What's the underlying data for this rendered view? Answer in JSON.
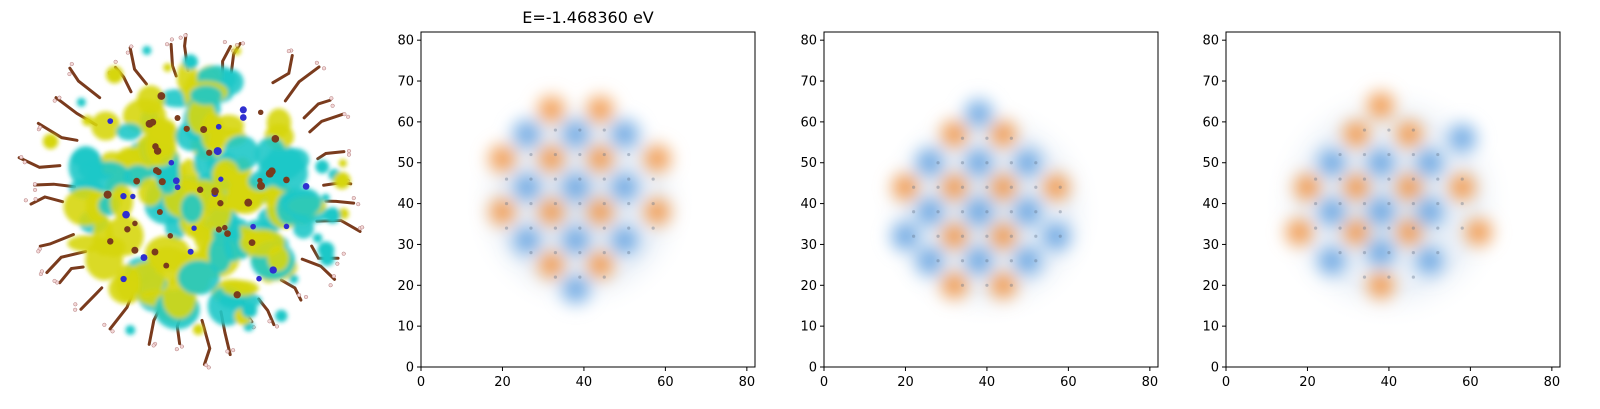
{
  "figure": {
    "title": "E=-1.468360 eV",
    "colors": {
      "positive": "#f28a21",
      "negative": "#3f8fe0",
      "isosurface_positive": "#d6d610",
      "isosurface_negative": "#1ec8c8",
      "atom_carbon": "#7a3b1d",
      "atom_nitrogen": "#2f2fd0",
      "atom_hydrogen": "#f3d7d7"
    }
  },
  "chart_data": [
    {
      "type": "heatmap",
      "title": "E=-1.468360 eV",
      "xlabel": "",
      "ylabel": "",
      "xlim": [
        0,
        82
      ],
      "ylim": [
        0,
        82
      ],
      "xticks": [
        0,
        20,
        40,
        60,
        80
      ],
      "yticks": [
        0,
        10,
        20,
        30,
        40,
        50,
        60,
        70,
        80
      ],
      "cluster_center": [
        39,
        40
      ],
      "cluster_radius": 25,
      "lobes": [
        {
          "x": 32,
          "y": 51,
          "sign": 1
        },
        {
          "x": 44,
          "y": 51,
          "sign": 1
        },
        {
          "x": 32,
          "y": 38,
          "sign": 1
        },
        {
          "x": 44,
          "y": 38,
          "sign": 1
        },
        {
          "x": 20,
          "y": 38,
          "sign": 1
        },
        {
          "x": 58,
          "y": 38,
          "sign": 1
        },
        {
          "x": 32,
          "y": 63,
          "sign": 1
        },
        {
          "x": 44,
          "y": 63,
          "sign": 1
        },
        {
          "x": 32,
          "y": 25,
          "sign": 1
        },
        {
          "x": 44,
          "y": 25,
          "sign": 1
        },
        {
          "x": 58,
          "y": 51,
          "sign": 1
        },
        {
          "x": 20,
          "y": 51,
          "sign": 1
        },
        {
          "x": 26,
          "y": 44,
          "sign": -1
        },
        {
          "x": 38,
          "y": 44,
          "sign": -1
        },
        {
          "x": 50,
          "y": 44,
          "sign": -1
        },
        {
          "x": 26,
          "y": 31,
          "sign": -1
        },
        {
          "x": 38,
          "y": 31,
          "sign": -1
        },
        {
          "x": 50,
          "y": 31,
          "sign": -1
        },
        {
          "x": 38,
          "y": 57,
          "sign": -1
        },
        {
          "x": 26,
          "y": 57,
          "sign": -1
        },
        {
          "x": 50,
          "y": 57,
          "sign": -1
        },
        {
          "x": 38,
          "y": 19,
          "sign": -1
        }
      ]
    },
    {
      "type": "heatmap",
      "xlim": [
        0,
        82
      ],
      "ylim": [
        0,
        82
      ],
      "xticks": [
        0,
        20,
        40,
        60,
        80
      ],
      "yticks": [
        0,
        10,
        20,
        30,
        40,
        50,
        60,
        70,
        80
      ],
      "cluster_center": [
        40,
        38
      ],
      "cluster_radius": 25,
      "lobes": [
        {
          "x": 32,
          "y": 44,
          "sign": 1
        },
        {
          "x": 44,
          "y": 44,
          "sign": 1
        },
        {
          "x": 32,
          "y": 32,
          "sign": 1
        },
        {
          "x": 44,
          "y": 32,
          "sign": 1
        },
        {
          "x": 20,
          "y": 44,
          "sign": 1
        },
        {
          "x": 57,
          "y": 44,
          "sign": 1
        },
        {
          "x": 32,
          "y": 57,
          "sign": 1
        },
        {
          "x": 44,
          "y": 57,
          "sign": 1
        },
        {
          "x": 32,
          "y": 20,
          "sign": 1
        },
        {
          "x": 44,
          "y": 20,
          "sign": 1
        },
        {
          "x": 26,
          "y": 50,
          "sign": -1
        },
        {
          "x": 38,
          "y": 50,
          "sign": -1
        },
        {
          "x": 50,
          "y": 50,
          "sign": -1
        },
        {
          "x": 26,
          "y": 38,
          "sign": -1
        },
        {
          "x": 38,
          "y": 38,
          "sign": -1
        },
        {
          "x": 50,
          "y": 38,
          "sign": -1
        },
        {
          "x": 26,
          "y": 26,
          "sign": -1
        },
        {
          "x": 50,
          "y": 26,
          "sign": -1
        },
        {
          "x": 38,
          "y": 62,
          "sign": -1
        },
        {
          "x": 38,
          "y": 26,
          "sign": -1
        },
        {
          "x": 20,
          "y": 32,
          "sign": -1
        },
        {
          "x": 57,
          "y": 32,
          "sign": -1
        }
      ]
    },
    {
      "type": "heatmap",
      "xlim": [
        0,
        82
      ],
      "ylim": [
        0,
        82
      ],
      "xticks": [
        0,
        20,
        40,
        60,
        80
      ],
      "yticks": [
        0,
        10,
        20,
        30,
        40,
        50,
        60,
        70,
        80
      ],
      "cluster_center": [
        40,
        40
      ],
      "cluster_radius": 27,
      "lobes": [
        {
          "x": 32,
          "y": 44,
          "sign": 1
        },
        {
          "x": 45,
          "y": 44,
          "sign": 1
        },
        {
          "x": 32,
          "y": 33,
          "sign": 1
        },
        {
          "x": 45,
          "y": 33,
          "sign": 1
        },
        {
          "x": 20,
          "y": 44,
          "sign": 1
        },
        {
          "x": 58,
          "y": 44,
          "sign": 1
        },
        {
          "x": 32,
          "y": 57,
          "sign": 1
        },
        {
          "x": 45,
          "y": 57,
          "sign": 1
        },
        {
          "x": 38,
          "y": 64,
          "sign": 1
        },
        {
          "x": 38,
          "y": 20,
          "sign": 1
        },
        {
          "x": 62,
          "y": 33,
          "sign": 1
        },
        {
          "x": 18,
          "y": 33,
          "sign": 1
        },
        {
          "x": 26,
          "y": 50,
          "sign": -1
        },
        {
          "x": 38,
          "y": 50,
          "sign": -1
        },
        {
          "x": 50,
          "y": 50,
          "sign": -1
        },
        {
          "x": 26,
          "y": 38,
          "sign": -1
        },
        {
          "x": 38,
          "y": 38,
          "sign": -1
        },
        {
          "x": 50,
          "y": 38,
          "sign": -1
        },
        {
          "x": 26,
          "y": 26,
          "sign": -1
        },
        {
          "x": 50,
          "y": 26,
          "sign": -1
        },
        {
          "x": 38,
          "y": 28,
          "sign": -1
        },
        {
          "x": 58,
          "y": 56,
          "sign": -1
        }
      ]
    }
  ]
}
